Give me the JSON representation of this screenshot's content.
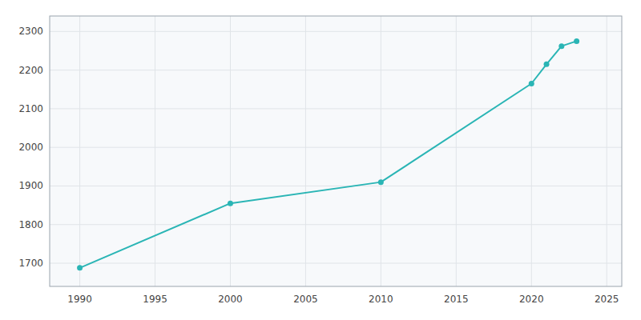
{
  "chart_data": {
    "type": "line",
    "x": [
      1990,
      2000,
      2010,
      2020,
      2021,
      2022,
      2023
    ],
    "values": [
      1688,
      1855,
      1910,
      2165,
      2215,
      2262,
      2275
    ],
    "color": "#2ab5b5",
    "marker": "circle",
    "xlim": [
      1988,
      2026
    ],
    "ylim": [
      1640,
      2340
    ],
    "xticks": [
      1990,
      1995,
      2000,
      2005,
      2010,
      2015,
      2020,
      2025
    ],
    "yticks": [
      1700,
      1800,
      1900,
      2000,
      2100,
      2200,
      2300
    ],
    "grid": true
  }
}
